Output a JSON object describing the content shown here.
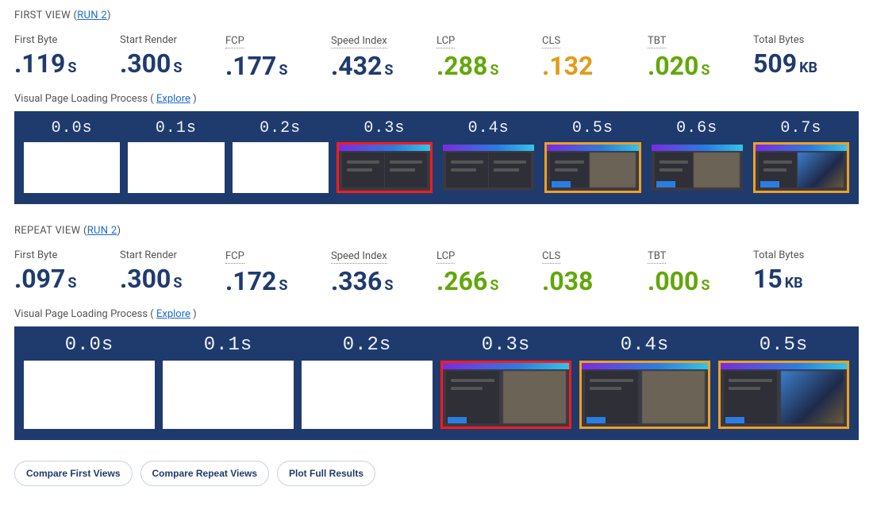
{
  "colors": {
    "navy": "#1f3b6e",
    "green": "#63a70a",
    "orange": "#e39b17",
    "filmstrip_bg": "#1f3b6e",
    "link": "#1a6bd6",
    "frame_red": "#ff1a1a",
    "frame_orange": "#f0a020"
  },
  "sections": [
    {
      "id": "first",
      "title_prefix": "FIRST VIEW (",
      "run_label": "RUN 2",
      "title_suffix": ")",
      "metrics": [
        {
          "label": "First Byte",
          "underline": false,
          "value": ".119",
          "unit": "S",
          "color": "navy"
        },
        {
          "label": "Start Render",
          "underline": false,
          "value": ".300",
          "unit": "S",
          "color": "navy"
        },
        {
          "label": "FCP",
          "underline": true,
          "value": ".177",
          "unit": "S",
          "color": "navy"
        },
        {
          "label": "Speed Index",
          "underline": true,
          "value": ".432",
          "unit": "S",
          "color": "navy"
        },
        {
          "label": "LCP",
          "underline": true,
          "value": ".288",
          "unit": "S",
          "color": "green"
        },
        {
          "label": "CLS",
          "underline": true,
          "value": ".132",
          "unit": "",
          "color": "orange"
        },
        {
          "label": "TBT",
          "underline": true,
          "value": ".020",
          "unit": "S",
          "color": "green"
        },
        {
          "label": "Total Bytes",
          "underline": false,
          "value": "509",
          "unit": "KB",
          "color": "navy"
        }
      ],
      "filmstrip_note_prefix": "Visual Page Loading Process ( ",
      "explore": "Explore",
      "filmstrip_note_suffix": " )",
      "frames": [
        {
          "time": "0.0s",
          "state": "blank",
          "border": "none"
        },
        {
          "time": "0.1s",
          "state": "blank",
          "border": "none"
        },
        {
          "time": "0.2s",
          "state": "blank",
          "border": "none"
        },
        {
          "time": "0.3s",
          "state": "partial",
          "border": "red"
        },
        {
          "time": "0.4s",
          "state": "partial",
          "border": "none"
        },
        {
          "time": "0.5s",
          "state": "content",
          "border": "orange"
        },
        {
          "time": "0.6s",
          "state": "content",
          "border": "none"
        },
        {
          "time": "0.7s",
          "state": "loaded",
          "border": "orange"
        }
      ]
    },
    {
      "id": "repeat",
      "title_prefix": "REPEAT VIEW (",
      "run_label": "RUN 2",
      "title_suffix": ")",
      "metrics": [
        {
          "label": "First Byte",
          "underline": false,
          "value": ".097",
          "unit": "S",
          "color": "navy"
        },
        {
          "label": "Start Render",
          "underline": false,
          "value": ".300",
          "unit": "S",
          "color": "navy"
        },
        {
          "label": "FCP",
          "underline": true,
          "value": ".172",
          "unit": "S",
          "color": "navy"
        },
        {
          "label": "Speed Index",
          "underline": true,
          "value": ".336",
          "unit": "S",
          "color": "navy"
        },
        {
          "label": "LCP",
          "underline": true,
          "value": ".266",
          "unit": "S",
          "color": "green"
        },
        {
          "label": "CLS",
          "underline": true,
          "value": ".038",
          "unit": "",
          "color": "green"
        },
        {
          "label": "TBT",
          "underline": true,
          "value": ".000",
          "unit": "S",
          "color": "green"
        },
        {
          "label": "Total Bytes",
          "underline": false,
          "value": "15",
          "unit": "KB",
          "color": "navy"
        }
      ],
      "filmstrip_note_prefix": "Visual Page Loading Process ( ",
      "explore": "Explore",
      "filmstrip_note_suffix": " )",
      "frames": [
        {
          "time": "0.0s",
          "state": "blank",
          "border": "none"
        },
        {
          "time": "0.1s",
          "state": "blank",
          "border": "none"
        },
        {
          "time": "0.2s",
          "state": "blank",
          "border": "none"
        },
        {
          "time": "0.3s",
          "state": "content",
          "border": "red"
        },
        {
          "time": "0.4s",
          "state": "content",
          "border": "orange"
        },
        {
          "time": "0.5s",
          "state": "loaded",
          "border": "orange"
        }
      ]
    }
  ],
  "actions": [
    {
      "label": "Compare First Views"
    },
    {
      "label": "Compare Repeat Views"
    },
    {
      "label": "Plot Full Results"
    }
  ]
}
